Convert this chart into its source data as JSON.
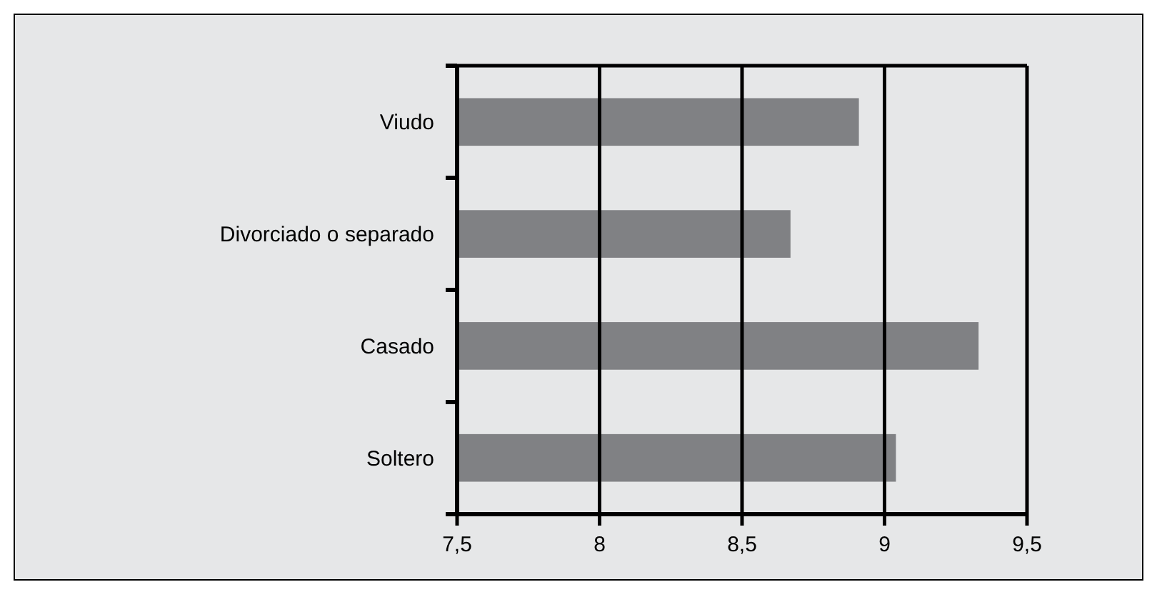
{
  "chart_data": {
    "type": "bar",
    "orientation": "horizontal",
    "categories": [
      "Viudo",
      "Divorciado o separado",
      "Casado",
      "Soltero"
    ],
    "values": [
      8.91,
      8.67,
      9.33,
      9.04
    ],
    "color": "#808184",
    "xlim": [
      7.5,
      9.5
    ],
    "xticks": [
      {
        "value": 7.5,
        "label": "7,5"
      },
      8,
      {
        "value": 8.5,
        "label": "8,5"
      },
      9,
      {
        "value": 9.5,
        "label": "9,5"
      }
    ],
    "grid": "x"
  }
}
